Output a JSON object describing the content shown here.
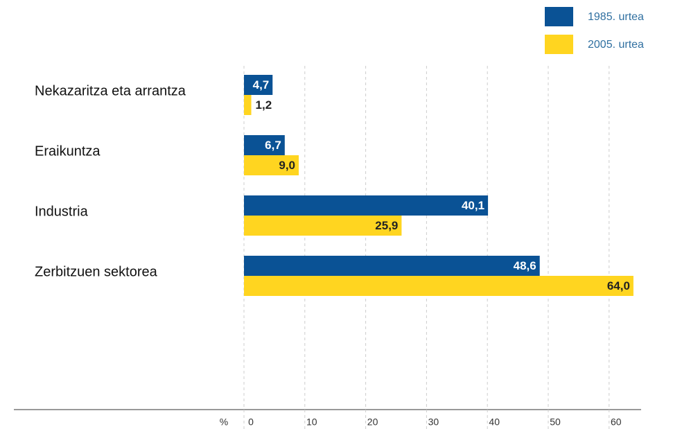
{
  "chart_data": {
    "type": "bar",
    "orientation": "horizontal",
    "categories": [
      "Nekazaritza eta arrantza",
      "Eraikuntza",
      "Industria",
      "Zerbitzuen sektorea"
    ],
    "series": [
      {
        "name": "1985. urtea",
        "color": "#0a5295",
        "values": [
          4.7,
          6.7,
          40.1,
          48.6
        ],
        "value_labels": [
          "4,7",
          "6,7",
          "40,1",
          "48,6"
        ]
      },
      {
        "name": "2005. urtea",
        "color": "#ffd520",
        "values": [
          1.2,
          9.0,
          25.9,
          64.0
        ],
        "value_labels": [
          "1,2",
          "9,0",
          "25,9",
          "64,0"
        ]
      }
    ],
    "xlabel": "%",
    "xlim": [
      0,
      65
    ],
    "xticks": [
      0,
      10,
      20,
      30,
      40,
      50,
      60
    ],
    "grid": true,
    "legend": "top-right"
  }
}
